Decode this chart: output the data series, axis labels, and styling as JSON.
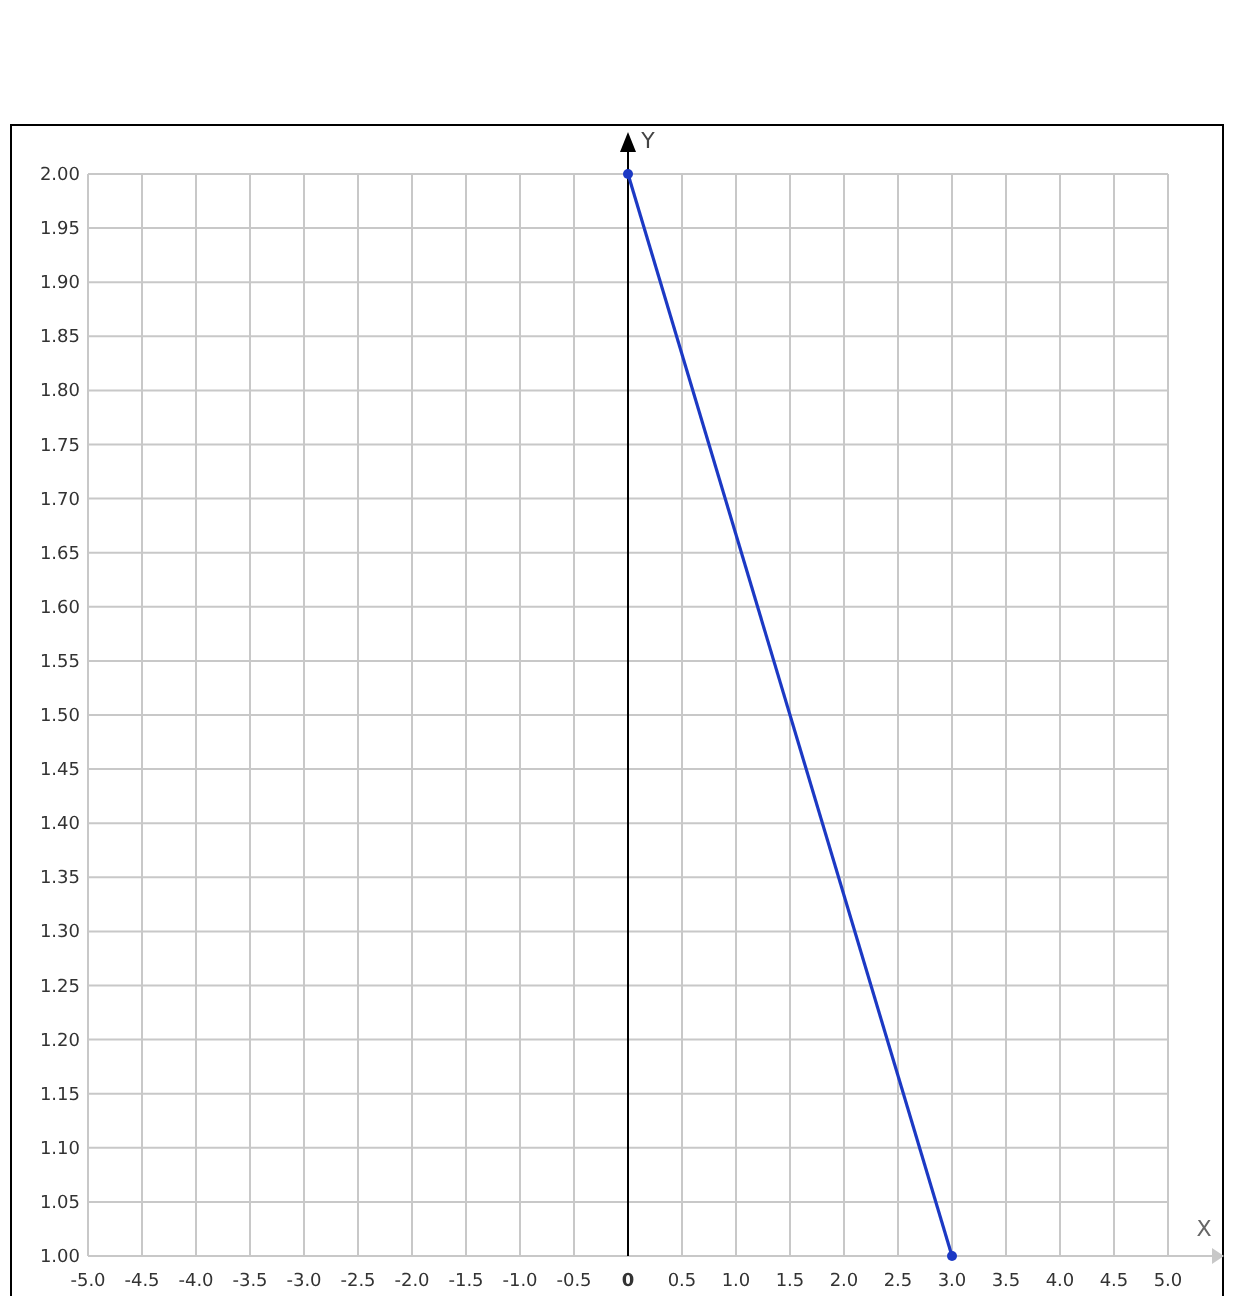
{
  "chart_data": {
    "type": "line",
    "xlabel": "X",
    "ylabel": "Y",
    "x": [
      0,
      3
    ],
    "series": [
      {
        "color": "#1c39c4",
        "values": [
          2,
          1
        ]
      }
    ],
    "xlim": [
      -5,
      5
    ],
    "ylim": [
      1,
      2
    ],
    "xticks": [
      {
        "value": -5,
        "label": "-5.0"
      },
      -4.5,
      {
        "value": -4,
        "label": "-4.0"
      },
      -3.5,
      {
        "value": -3,
        "label": "-3.0"
      },
      -2.5,
      {
        "value": -2,
        "label": "-2.0"
      },
      -1.5,
      {
        "value": -1,
        "label": "-1.0"
      },
      -0.5,
      0,
      0.5,
      {
        "value": 1,
        "label": "1.0"
      },
      1.5,
      {
        "value": 2,
        "label": "2.0"
      },
      2.5,
      {
        "value": 3,
        "label": "3.0"
      },
      3.5,
      {
        "value": 4,
        "label": "4.0"
      },
      4.5,
      {
        "value": 5,
        "label": "5.0"
      }
    ],
    "yticks": [
      {
        "value": 1,
        "label": "1.00"
      },
      1.05,
      {
        "value": 1.1,
        "label": "1.10"
      },
      1.15,
      {
        "value": 1.2,
        "label": "1.20"
      },
      1.25,
      {
        "value": 1.3,
        "label": "1.30"
      },
      1.35,
      {
        "value": 1.4,
        "label": "1.40"
      },
      1.45,
      {
        "value": 1.5,
        "label": "1.50"
      },
      1.55,
      {
        "value": 1.6,
        "label": "1.60"
      },
      1.65,
      {
        "value": 1.7,
        "label": "1.70"
      },
      1.75,
      {
        "value": 1.8,
        "label": "1.80"
      },
      1.85,
      {
        "value": 1.9,
        "label": "1.90"
      },
      1.95,
      {
        "value": 2,
        "label": "2.00"
      }
    ],
    "grid": true,
    "marker": "circle",
    "line_style": "solid"
  }
}
